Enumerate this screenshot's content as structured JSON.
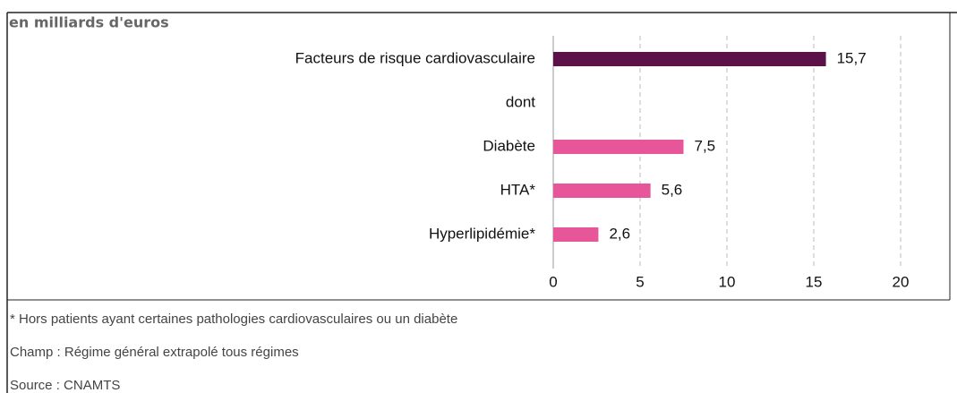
{
  "chart_data": {
    "type": "bar",
    "orientation": "horizontal",
    "subtitle": "en milliards d'euros",
    "categories": [
      "Facteurs de risque cardiovasculaire",
      "dont",
      "Diabète",
      "HTA*",
      "Hyperlipidémie*"
    ],
    "values": [
      15.7,
      null,
      7.5,
      5.6,
      2.6
    ],
    "value_labels": [
      "15,7",
      null,
      "7,5",
      "5,6",
      "2,6"
    ],
    "colors": [
      "#5c1149",
      null,
      "#e8569a",
      "#e8569a",
      "#e8569a"
    ],
    "xlim": [
      0,
      20
    ],
    "xticks": [
      0,
      5,
      10,
      15,
      20
    ],
    "grid": true,
    "notes": [
      "* Hors patients ayant certaines pathologies cardiovasculaires ou un diabète",
      "Champ : Régime général extrapolé tous régimes",
      "Source : CNAMTS"
    ]
  }
}
